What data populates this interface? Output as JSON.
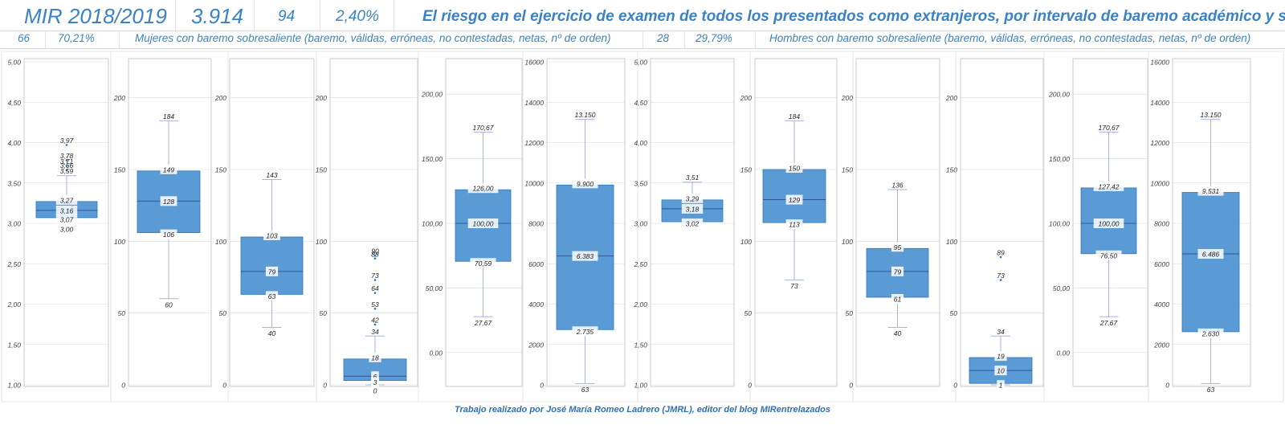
{
  "header": {
    "year": "MIR 2018/2019",
    "total": "3.914",
    "count": "94",
    "percent": "2,40%",
    "title": "El riesgo en el ejercicio de examen de todos los presentados como extranjeros, por intervalo de baremo académico y sexo"
  },
  "women": {
    "count": "66",
    "percent": "70,21%",
    "label": "Mujeres con baremo sobresaliente (baremo, válidas, erróneas, no contestadas, netas, nº de orden)"
  },
  "men": {
    "count": "28",
    "percent": "29,79%",
    "label": "Hombres con baremo sobresaliente (baremo, válidas, erróneas, no contestadas, netas, nº de orden)"
  },
  "footer": "Trabajo realizado por José María Romeo Ladrero (JMRL), editor del blog MIRentrelazados",
  "colors": {
    "box": "#5b9bd5",
    "box_edge": "#2e75b6",
    "whisker": "#a6b6d6",
    "grid": "#d9d9d9",
    "title": "#3b82c4"
  },
  "chart_data": [
    {
      "type": "box",
      "group": "Mujeres",
      "variable": "baremo",
      "ylim": [
        1,
        5
      ],
      "yticks": [
        1,
        1.5,
        2,
        2.5,
        3,
        3.5,
        4,
        4.5,
        5
      ],
      "yticklabels": [
        "1,00",
        "1,50",
        "2,00",
        "2,50",
        "3,00",
        "3,50",
        "4,00",
        "4,50",
        "5,00"
      ],
      "min": 3.0,
      "q1": 3.07,
      "median": 3.16,
      "q3": 3.27,
      "max": 3.59,
      "outliers": [
        3.66,
        3.71,
        3.78,
        3.97
      ],
      "labels": {
        "min": "3,00",
        "q1": "3,07",
        "median": "3,16",
        "q3": "3,27",
        "max": "3,59",
        "outliers": [
          "3,66",
          "3,71",
          "3,78",
          "3,97"
        ]
      }
    },
    {
      "type": "box",
      "group": "Mujeres",
      "variable": "válidas",
      "ylim": [
        0,
        225
      ],
      "yticks": [
        0,
        50,
        100,
        150,
        200
      ],
      "yticklabels": [
        "0",
        "50",
        "100",
        "150",
        "200"
      ],
      "min": 60,
      "q1": 106,
      "median": 128,
      "q3": 149,
      "max": 184,
      "outliers": [],
      "labels": {
        "min": "60",
        "q1": "106",
        "median": "128",
        "q3": "149",
        "max": "184",
        "outliers": []
      }
    },
    {
      "type": "box",
      "group": "Mujeres",
      "variable": "erróneas",
      "ylim": [
        0,
        225
      ],
      "yticks": [
        0,
        50,
        100,
        150,
        200
      ],
      "yticklabels": [
        "0",
        "50",
        "100",
        "150",
        "200"
      ],
      "min": 40,
      "q1": 63,
      "median": 79,
      "q3": 103,
      "max": 143,
      "outliers": [],
      "labels": {
        "min": "40",
        "q1": "63",
        "median": "79",
        "q3": "103",
        "max": "143",
        "outliers": []
      }
    },
    {
      "type": "box",
      "group": "Mujeres",
      "variable": "no contestadas",
      "ylim": [
        0,
        225
      ],
      "yticks": [
        0,
        50,
        100,
        150,
        200
      ],
      "yticklabels": [
        "0",
        "50",
        "100",
        "150",
        "200"
      ],
      "min": 0,
      "q1": 3,
      "median": 6,
      "q3": 18,
      "max": 34,
      "outliers": [
        42,
        53,
        64,
        73,
        88,
        90
      ],
      "labels": {
        "min": "0",
        "q1": "3",
        "median": "6",
        "q3": "18",
        "max": "34",
        "outliers": [
          "42",
          "53",
          "64",
          "73",
          "88",
          "90"
        ]
      }
    },
    {
      "type": "box",
      "group": "Mujeres",
      "variable": "netas",
      "ylim": [
        -25,
        225
      ],
      "yticks": [
        0,
        50,
        100,
        150,
        200
      ],
      "yticklabels": [
        "0,00",
        "50,00",
        "100,00",
        "150,00",
        "200,00"
      ],
      "min": 27.67,
      "q1": 70.59,
      "median": 100.0,
      "q3": 126.0,
      "max": 170.67,
      "outliers": [],
      "labels": {
        "min": "27,67",
        "q1": "70,59",
        "median": "100,00",
        "q3": "126,00",
        "max": "170,67",
        "outliers": []
      }
    },
    {
      "type": "box",
      "group": "Mujeres",
      "variable": "nº de orden",
      "ylim": [
        0,
        16000
      ],
      "yticks": [
        0,
        2000,
        4000,
        6000,
        8000,
        10000,
        12000,
        14000,
        16000
      ],
      "yticklabels": [
        "0",
        "2000",
        "4000",
        "6000",
        "8000",
        "10000",
        "12000",
        "14000",
        "16000"
      ],
      "min": 63,
      "q1": 2735,
      "median": 6383,
      "q3": 9900,
      "max": 13150,
      "outliers": [],
      "labels": {
        "min": "63",
        "q1": "2.735",
        "median": "6.383",
        "q3": "9.900",
        "max": "13.150",
        "outliers": []
      }
    },
    {
      "type": "box",
      "group": "Hombres",
      "variable": "baremo",
      "ylim": [
        1,
        5
      ],
      "yticks": [
        1,
        1.5,
        2,
        2.5,
        3,
        3.5,
        4,
        4.5,
        5
      ],
      "yticklabels": [
        "1,00",
        "1,50",
        "2,00",
        "2,50",
        "3,00",
        "3,50",
        "4,00",
        "4,50",
        "5,00"
      ],
      "min": 3.0,
      "q1": 3.02,
      "median": 3.18,
      "q3": 3.29,
      "max": 3.51,
      "outliers": [],
      "labels": {
        "min": "",
        "q1": "3,02",
        "median": "3,18",
        "q3": "3,29",
        "max": "3,51",
        "outliers": []
      }
    },
    {
      "type": "box",
      "group": "Hombres",
      "variable": "válidas",
      "ylim": [
        0,
        225
      ],
      "yticks": [
        0,
        50,
        100,
        150,
        200
      ],
      "yticklabels": [
        "0",
        "50",
        "100",
        "150",
        "200"
      ],
      "min": 73,
      "q1": 113,
      "median": 129,
      "q3": 150,
      "max": 184,
      "outliers": [],
      "labels": {
        "min": "73",
        "q1": "113",
        "median": "129",
        "q3": "150",
        "max": "184",
        "outliers": []
      }
    },
    {
      "type": "box",
      "group": "Hombres",
      "variable": "erróneas",
      "ylim": [
        0,
        225
      ],
      "yticks": [
        0,
        50,
        100,
        150,
        200
      ],
      "yticklabels": [
        "0",
        "50",
        "100",
        "150",
        "200"
      ],
      "min": 40,
      "q1": 61,
      "median": 79,
      "q3": 95,
      "max": 136,
      "outliers": [],
      "labels": {
        "min": "40",
        "q1": "61",
        "median": "79",
        "q3": "95",
        "max": "136",
        "outliers": []
      }
    },
    {
      "type": "box",
      "group": "Hombres",
      "variable": "no contestadas",
      "ylim": [
        0,
        225
      ],
      "yticks": [
        0,
        50,
        100,
        150,
        200
      ],
      "yticklabels": [
        "0",
        "50",
        "100",
        "150",
        "200"
      ],
      "min": 0,
      "q1": 1,
      "median": 10,
      "q3": 19,
      "max": 34,
      "outliers": [
        73,
        89
      ],
      "labels": {
        "min": "",
        "q1": "1",
        "median": "10",
        "q3": "19",
        "max": "34",
        "outliers": [
          "73",
          "89"
        ]
      }
    },
    {
      "type": "box",
      "group": "Hombres",
      "variable": "netas",
      "ylim": [
        -25,
        225
      ],
      "yticks": [
        0,
        50,
        100,
        150,
        200
      ],
      "yticklabels": [
        "0,00",
        "50,00",
        "100,00",
        "150,00",
        "200,00"
      ],
      "min": 27.67,
      "q1": 76.5,
      "median": 100.0,
      "q3": 127.42,
      "max": 170.67,
      "outliers": [],
      "labels": {
        "min": "27,67",
        "q1": "76,50",
        "median": "100,00",
        "q3": "127,42",
        "max": "170,67",
        "outliers": []
      }
    },
    {
      "type": "box",
      "group": "Hombres",
      "variable": "nº de orden",
      "ylim": [
        0,
        16000
      ],
      "yticks": [
        0,
        2000,
        4000,
        6000,
        8000,
        10000,
        12000,
        14000,
        16000
      ],
      "yticklabels": [
        "0",
        "2000",
        "4000",
        "6000",
        "8000",
        "10000",
        "12000",
        "14000",
        "16000"
      ],
      "min": 63,
      "q1": 2630,
      "median": 6486,
      "q3": 9531,
      "max": 13150,
      "outliers": [],
      "labels": {
        "min": "63",
        "q1": "2.630",
        "median": "6.486",
        "q3": "9.531",
        "max": "13.150",
        "outliers": []
      }
    }
  ]
}
